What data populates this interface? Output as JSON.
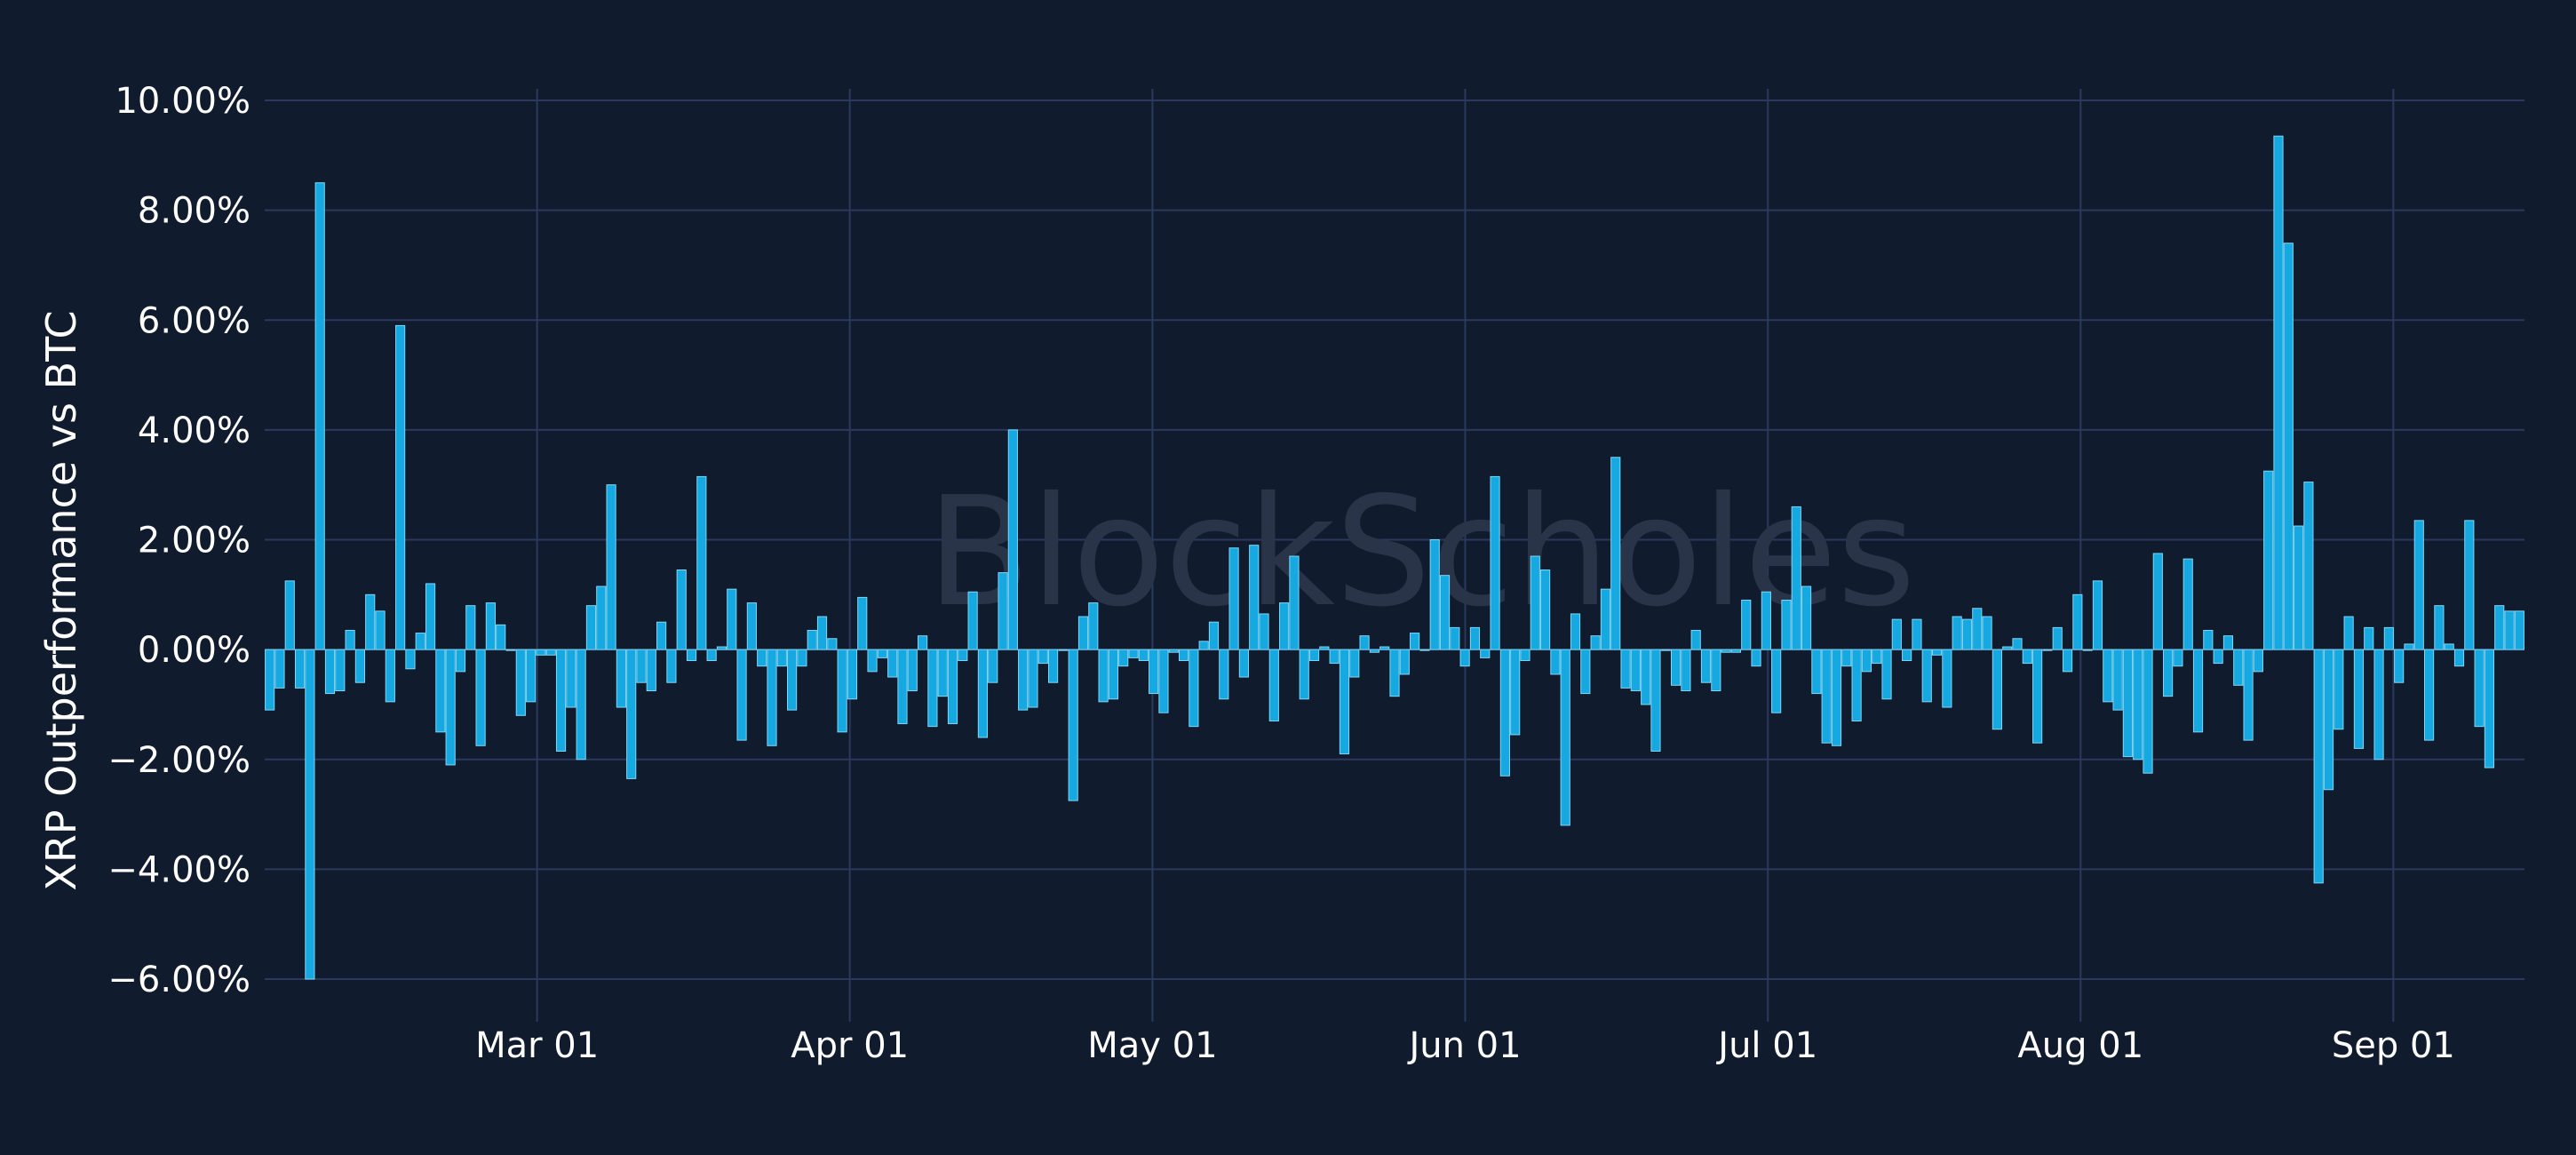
{
  "watermark": "BlockScholes",
  "colors": {
    "background": "#111b2e",
    "grid": "#2b3a5c",
    "bar": "#16a8e0",
    "bar_edge": "#7fd6f5",
    "text": "#ffffff",
    "watermark": "#2a3448"
  },
  "chart_data": {
    "type": "bar",
    "ylabel": "XRP Outperformance vs BTC",
    "xlabel": "",
    "y_unit": "%",
    "ylim": [
      -6.6,
      10.1
    ],
    "yticks": [
      10,
      8,
      6,
      4,
      2,
      0,
      -2,
      -4,
      -6
    ],
    "ytick_labels": [
      "10.00%",
      "8.00%",
      "6.00%",
      "4.00%",
      "2.00%",
      "0.00%",
      "−2.00%",
      "−4.00%",
      "−6.00%"
    ],
    "xticks": [
      {
        "date": "2024-03-01",
        "label": "Mar 01"
      },
      {
        "date": "2024-04-01",
        "label": "Apr 01"
      },
      {
        "date": "2024-05-01",
        "label": "May 01"
      },
      {
        "date": "2024-06-01",
        "label": "Jun 01"
      },
      {
        "date": "2024-07-01",
        "label": "Jul 01"
      },
      {
        "date": "2024-08-01",
        "label": "Aug 01"
      },
      {
        "date": "2024-09-01",
        "label": "Sep 01"
      }
    ],
    "grid": true,
    "x_start": "2024-02-03",
    "x_end": "2024-09-14",
    "values": [
      -1.1,
      -0.7,
      1.25,
      -0.7,
      -6.0,
      8.5,
      -0.8,
      -0.75,
      0.35,
      -0.6,
      1.0,
      0.7,
      -0.95,
      5.9,
      -0.35,
      0.3,
      1.2,
      -1.5,
      -2.1,
      -0.4,
      0.8,
      -1.75,
      0.85,
      0.45,
      0.0,
      -1.2,
      -0.95,
      -0.1,
      -0.1,
      -1.85,
      -1.05,
      -2.0,
      0.8,
      1.15,
      3.0,
      -1.05,
      -2.35,
      -0.6,
      -0.75,
      0.5,
      -0.6,
      1.45,
      -0.2,
      3.15,
      -0.2,
      0.05,
      1.1,
      -1.65,
      0.85,
      -0.3,
      -1.75,
      -0.3,
      -1.1,
      -0.3,
      0.35,
      0.6,
      0.2,
      -1.5,
      -0.9,
      0.95,
      -0.4,
      -0.15,
      -0.5,
      -1.35,
      -0.75,
      0.25,
      -1.4,
      -0.85,
      -1.35,
      -0.2,
      1.05,
      -1.6,
      -0.6,
      1.4,
      4.0,
      -1.1,
      -1.05,
      -0.25,
      -0.6,
      0.0,
      -2.75,
      0.6,
      0.85,
      -0.95,
      -0.9,
      -0.3,
      -0.15,
      -0.2,
      -0.8,
      -1.15,
      -0.05,
      -0.2,
      -1.4,
      0.15,
      0.5,
      -0.9,
      1.85,
      -0.5,
      1.9,
      0.65,
      -1.3,
      0.85,
      1.7,
      -0.9,
      -0.2,
      0.05,
      -0.25,
      -1.9,
      -0.5,
      0.25,
      -0.05,
      0.05,
      -0.85,
      -0.45,
      0.3,
      0.0,
      2.0,
      1.35,
      0.4,
      -0.3,
      0.4,
      -0.15,
      3.15,
      -2.3,
      -1.55,
      -0.2,
      1.7,
      1.45,
      -0.45,
      -3.2,
      0.65,
      -0.8,
      0.25,
      1.1,
      3.5,
      -0.7,
      -0.75,
      -1.0,
      -1.85,
      0.0,
      -0.65,
      -0.75,
      0.35,
      -0.6,
      -0.75,
      -0.05,
      -0.05,
      0.9,
      -0.3,
      1.05,
      -1.15,
      0.9,
      2.6,
      1.15,
      -0.8,
      -1.7,
      -1.75,
      -0.3,
      -1.3,
      -0.4,
      -0.25,
      -0.9,
      0.55,
      -0.2,
      0.55,
      -0.95,
      -0.1,
      -1.05,
      0.6,
      0.55,
      0.75,
      0.6,
      -1.45,
      0.05,
      0.2,
      -0.25,
      -1.7,
      0.0,
      0.4,
      -0.4,
      1.0,
      0.0,
      1.25,
      -0.95,
      -1.1,
      -1.95,
      -2.0,
      -2.25,
      1.75,
      -0.85,
      -0.3,
      1.65,
      -1.5,
      0.35,
      -0.25,
      0.25,
      -0.65,
      -1.65,
      -0.4,
      3.25,
      9.35,
      7.4,
      2.25,
      3.05,
      -4.25,
      -2.55,
      -1.45,
      0.6,
      -1.8,
      0.4,
      -2.0,
      0.4,
      -0.6,
      0.1,
      2.35,
      -1.65,
      0.8,
      0.1,
      -0.3,
      2.35,
      -1.4,
      -2.15,
      0.8,
      0.7,
      0.7
    ]
  }
}
